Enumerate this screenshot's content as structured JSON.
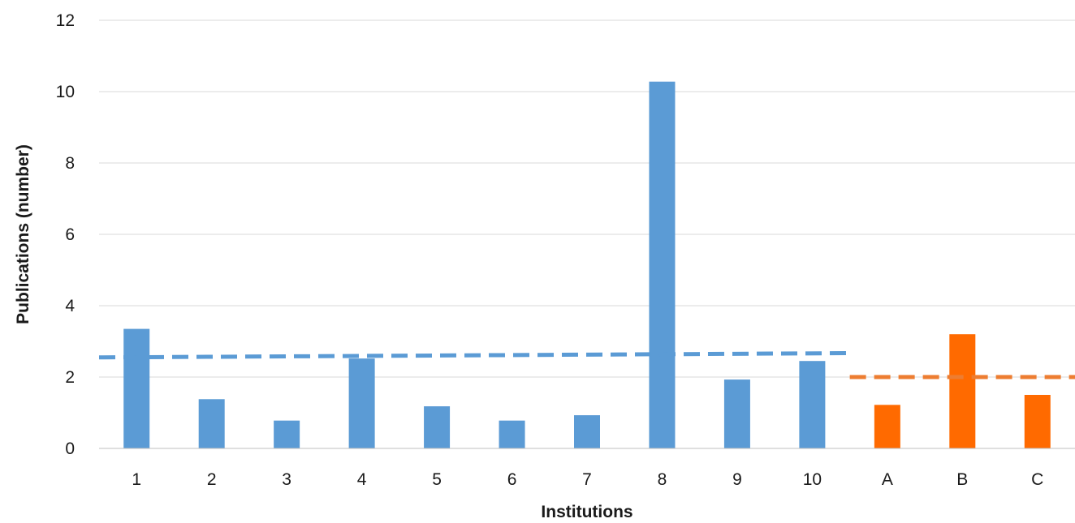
{
  "chart_data": {
    "type": "bar",
    "title": "",
    "xlabel": "Institutions",
    "ylabel": "Publications (number)",
    "ylim": [
      0,
      12
    ],
    "yticks": [
      0,
      2,
      4,
      6,
      8,
      10,
      12
    ],
    "grid": true,
    "categories": [
      "1",
      "2",
      "3",
      "4",
      "5",
      "6",
      "7",
      "8",
      "9",
      "10",
      "A",
      "B",
      "C"
    ],
    "values": [
      3.35,
      1.38,
      0.78,
      2.52,
      1.18,
      0.78,
      0.93,
      10.28,
      1.93,
      2.45,
      1.22,
      3.2,
      1.5
    ],
    "bar_colors": [
      "#5b9bd5",
      "#5b9bd5",
      "#5b9bd5",
      "#5b9bd5",
      "#5b9bd5",
      "#5b9bd5",
      "#5b9bd5",
      "#5b9bd5",
      "#5b9bd5",
      "#5b9bd5",
      "#ff6a00",
      "#ff6a00",
      "#ff6a00"
    ],
    "trendlines": [
      {
        "from_category": "1",
        "to_category": "10",
        "start_value": 2.55,
        "end_value": 2.67,
        "color": "#5b9bd5"
      },
      {
        "from_category": "A",
        "to_category": "C",
        "start_value": 2.0,
        "end_value": 2.0,
        "color": "#ed7d31"
      }
    ]
  }
}
